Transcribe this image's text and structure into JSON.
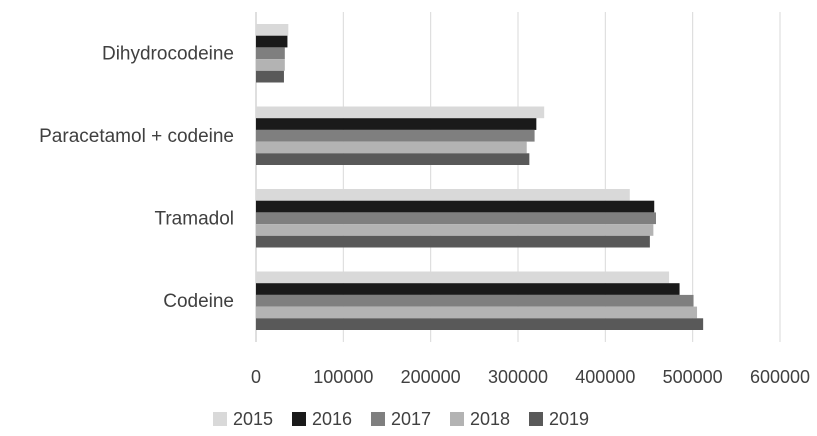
{
  "chart_data": {
    "type": "bar",
    "orientation": "horizontal",
    "categories": [
      "Codeine",
      "Tramadol",
      "Paracetamol + codeine",
      "Dihydrocodeine"
    ],
    "series": [
      {
        "name": "2015",
        "color": "#d9d9d9",
        "values": [
          473000,
          428000,
          330000,
          37000
        ]
      },
      {
        "name": "2016",
        "color": "#1a1a1a",
        "values": [
          485000,
          456000,
          321000,
          36000
        ]
      },
      {
        "name": "2017",
        "color": "#7f7f7f",
        "values": [
          501000,
          458000,
          319000,
          33000
        ]
      },
      {
        "name": "2018",
        "color": "#b3b3b3",
        "values": [
          505000,
          455000,
          310000,
          33000
        ]
      },
      {
        "name": "2019",
        "color": "#595959",
        "values": [
          512000,
          451000,
          313000,
          32000
        ]
      }
    ],
    "xlim": [
      0,
      600000
    ],
    "xticks": [
      "0",
      "100000",
      "200000",
      "300000",
      "400000",
      "500000",
      "600000"
    ],
    "title": "",
    "xlabel": "",
    "ylabel": "",
    "grid": true,
    "legend_position": "bottom"
  }
}
